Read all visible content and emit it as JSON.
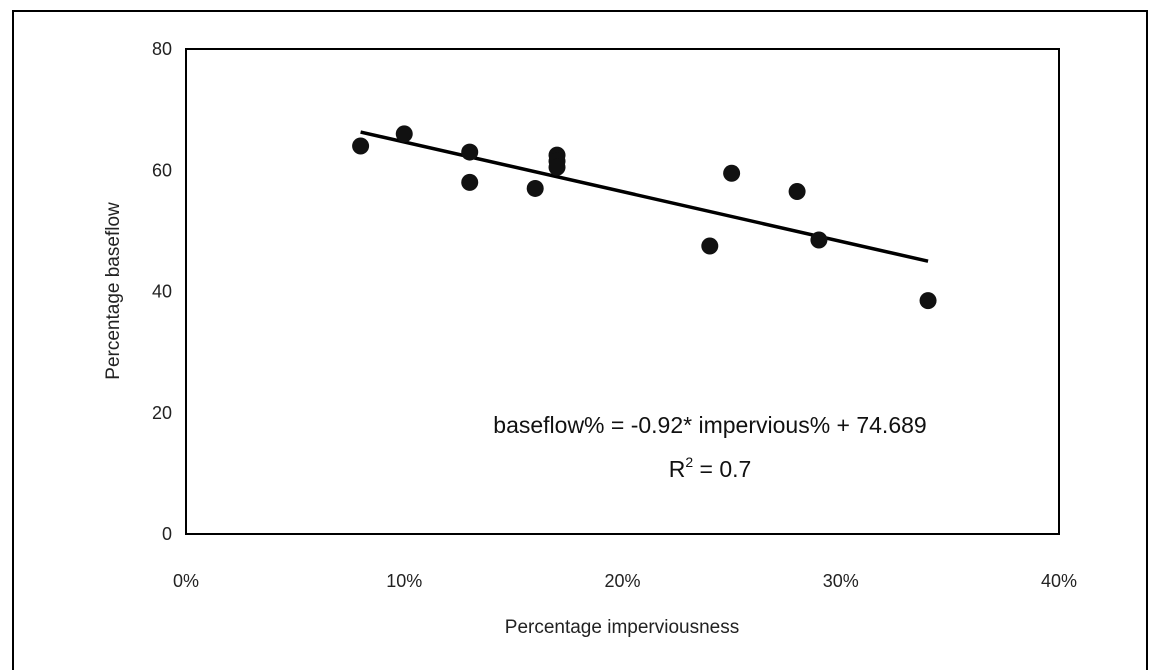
{
  "chart_data": {
    "type": "scatter",
    "xlabel": "Percentage imperviousness",
    "ylabel": "Percentage baseflow",
    "xlim": [
      0,
      40
    ],
    "ylim": [
      0,
      80
    ],
    "x_ticks": [
      "0%",
      "10%",
      "20%",
      "30%",
      "40%"
    ],
    "x_tick_values": [
      0,
      10,
      20,
      30,
      40
    ],
    "y_ticks": [
      "0",
      "20",
      "40",
      "60",
      "80"
    ],
    "y_tick_values": [
      0,
      20,
      40,
      60,
      80
    ],
    "points": [
      {
        "x": 8,
        "y": 64
      },
      {
        "x": 10,
        "y": 66
      },
      {
        "x": 13,
        "y": 63
      },
      {
        "x": 13,
        "y": 58
      },
      {
        "x": 16,
        "y": 57
      },
      {
        "x": 17,
        "y": 62.5
      },
      {
        "x": 17,
        "y": 61.5
      },
      {
        "x": 17,
        "y": 60.5
      },
      {
        "x": 24,
        "y": 47.5
      },
      {
        "x": 25,
        "y": 59.5
      },
      {
        "x": 28,
        "y": 56.5
      },
      {
        "x": 29,
        "y": 48.5
      },
      {
        "x": 34,
        "y": 38.5
      }
    ],
    "trendline": {
      "x_start": 8,
      "y_start": 66.3,
      "x_end": 34,
      "y_end": 45
    },
    "annotation": {
      "equation": "baseflow% = -0.92* impervious% + 74.689",
      "r2_label": "R",
      "r2_sup": "2",
      "r2_value": " = 0.7"
    },
    "grid": false,
    "legend": "none"
  }
}
